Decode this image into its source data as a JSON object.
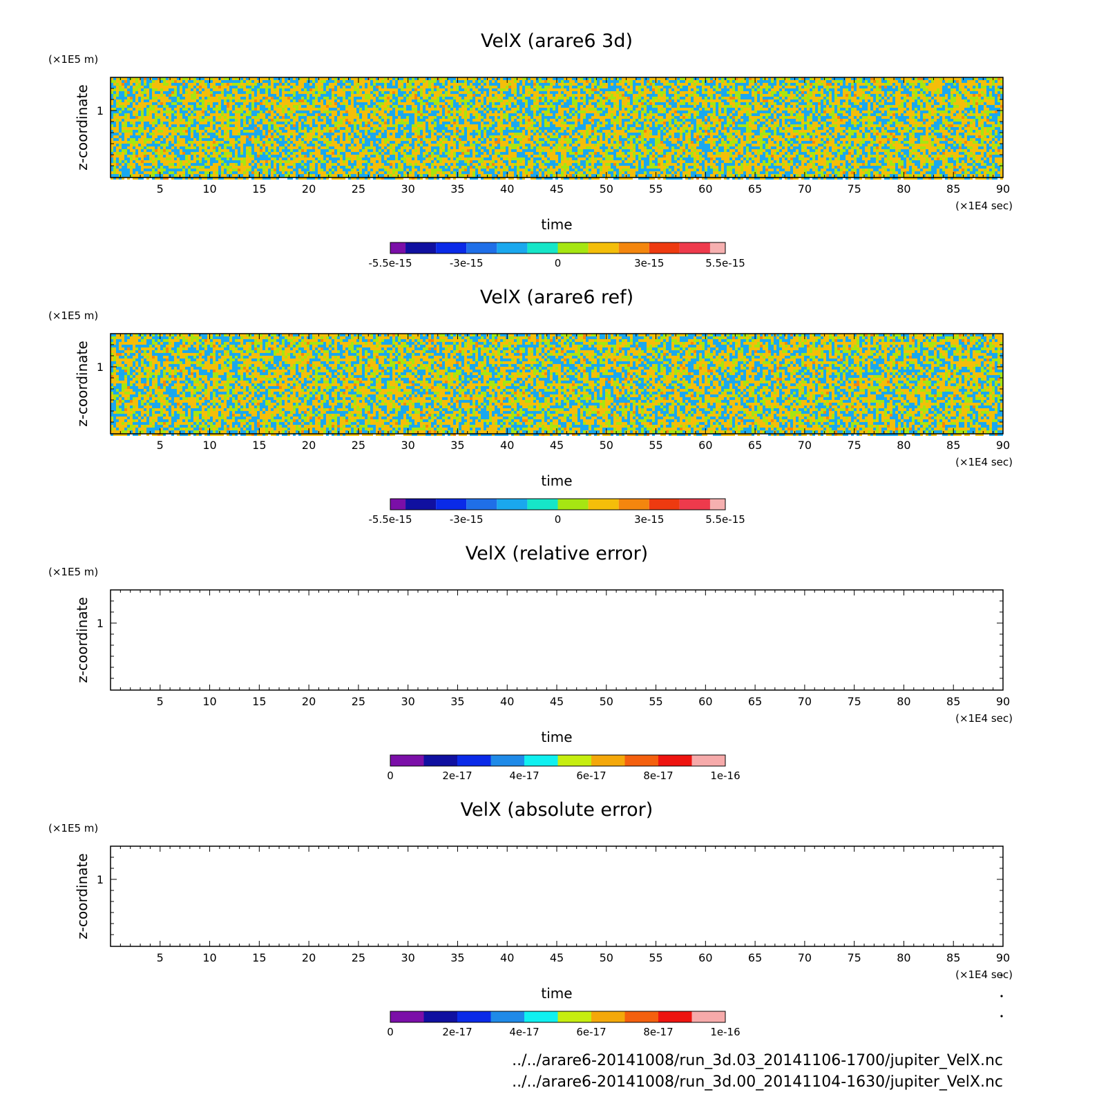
{
  "chart_data": [
    {
      "type": "heatmap",
      "title": "VelX (arare6 3d)",
      "xlabel": "time",
      "ylabel": "z-coordinate",
      "x_unit": "(×1E4 sec)",
      "y_unit": "(×1E5 m)",
      "xlim": [
        0,
        90
      ],
      "x_ticks": [
        "5",
        "10",
        "15",
        "20",
        "25",
        "30",
        "35",
        "40",
        "45",
        "50",
        "55",
        "60",
        "65",
        "70",
        "75",
        "80",
        "85",
        "90"
      ],
      "y_ticks": [
        "1"
      ],
      "field": "noise",
      "field_range": [
        -1e-15,
        1e-15
      ],
      "colorbar": {
        "range": [
          -5.5e-15,
          5.5e-15
        ],
        "labels": [
          "-5.5e-15",
          "-3e-15",
          "0",
          "3e-15",
          "5.5e-15"
        ],
        "colors": [
          "#7b0fa8",
          "#1010a0",
          "#0a2ae8",
          "#1f6fe8",
          "#1aa8ee",
          "#16e6c8",
          "#a6e612",
          "#f4be0a",
          "#f4860e",
          "#ee3a10",
          "#ee3a4c",
          "#f6b0b0"
        ]
      }
    },
    {
      "type": "heatmap",
      "title": "VelX (arare6 ref)",
      "xlabel": "time",
      "ylabel": "z-coordinate",
      "x_unit": "(×1E4 sec)",
      "y_unit": "(×1E5 m)",
      "xlim": [
        0,
        90
      ],
      "x_ticks": [
        "5",
        "10",
        "15",
        "20",
        "25",
        "30",
        "35",
        "40",
        "45",
        "50",
        "55",
        "60",
        "65",
        "70",
        "75",
        "80",
        "85",
        "90"
      ],
      "y_ticks": [
        "1"
      ],
      "field": "noise",
      "field_range": [
        -1e-15,
        1e-15
      ],
      "colorbar": {
        "range": [
          -5.5e-15,
          5.5e-15
        ],
        "labels": [
          "-5.5e-15",
          "-3e-15",
          "0",
          "3e-15",
          "5.5e-15"
        ],
        "colors": [
          "#7b0fa8",
          "#1010a0",
          "#0a2ae8",
          "#1f6fe8",
          "#1aa8ee",
          "#16e6c8",
          "#a6e612",
          "#f4be0a",
          "#f4860e",
          "#ee3a10",
          "#ee3a4c",
          "#f6b0b0"
        ]
      }
    },
    {
      "type": "heatmap",
      "title": "VelX (relative error)",
      "xlabel": "time",
      "ylabel": "z-coordinate",
      "x_unit": "(×1E4 sec)",
      "y_unit": "(×1E5 m)",
      "xlim": [
        0,
        90
      ],
      "x_ticks": [
        "5",
        "10",
        "15",
        "20",
        "25",
        "30",
        "35",
        "40",
        "45",
        "50",
        "55",
        "60",
        "65",
        "70",
        "75",
        "80",
        "85",
        "90"
      ],
      "y_ticks": [
        "1"
      ],
      "field": "empty",
      "colorbar": {
        "range": [
          0,
          1e-16
        ],
        "labels": [
          "0",
          "2e-17",
          "4e-17",
          "6e-17",
          "8e-17",
          "1e-16"
        ],
        "colors": [
          "#7b0fa8",
          "#1010a0",
          "#0a2ae8",
          "#1f8ae8",
          "#10f0f0",
          "#c6ee10",
          "#f4a80a",
          "#f4600e",
          "#ee1410",
          "#f6aaaa"
        ]
      }
    },
    {
      "type": "heatmap",
      "title": "VelX (absolute error)",
      "xlabel": "time",
      "ylabel": "z-coordinate",
      "x_unit": "(×1E4 sec)",
      "y_unit": "(×1E5 m)",
      "xlim": [
        0,
        90
      ],
      "x_ticks": [
        "5",
        "10",
        "15",
        "20",
        "25",
        "30",
        "35",
        "40",
        "45",
        "50",
        "55",
        "60",
        "65",
        "70",
        "75",
        "80",
        "85",
        "90"
      ],
      "y_ticks": [
        "1"
      ],
      "field": "empty",
      "colorbar": {
        "range": [
          0,
          1e-16
        ],
        "labels": [
          "0",
          "2e-17",
          "4e-17",
          "6e-17",
          "8e-17",
          "1e-16"
        ],
        "colors": [
          "#7b0fa8",
          "#1010a0",
          "#0a2ae8",
          "#1f8ae8",
          "#10f0f0",
          "#c6ee10",
          "#f4a80a",
          "#f4600e",
          "#ee1410",
          "#f6aaaa"
        ]
      }
    }
  ],
  "footer": {
    "lines": [
      "../../arare6-20141008/run_3d.03_20141106-1700/jupiter_VelX.nc",
      "../../arare6-20141008/run_3d.00_20141104-1630/jupiter_VelX.nc"
    ]
  }
}
